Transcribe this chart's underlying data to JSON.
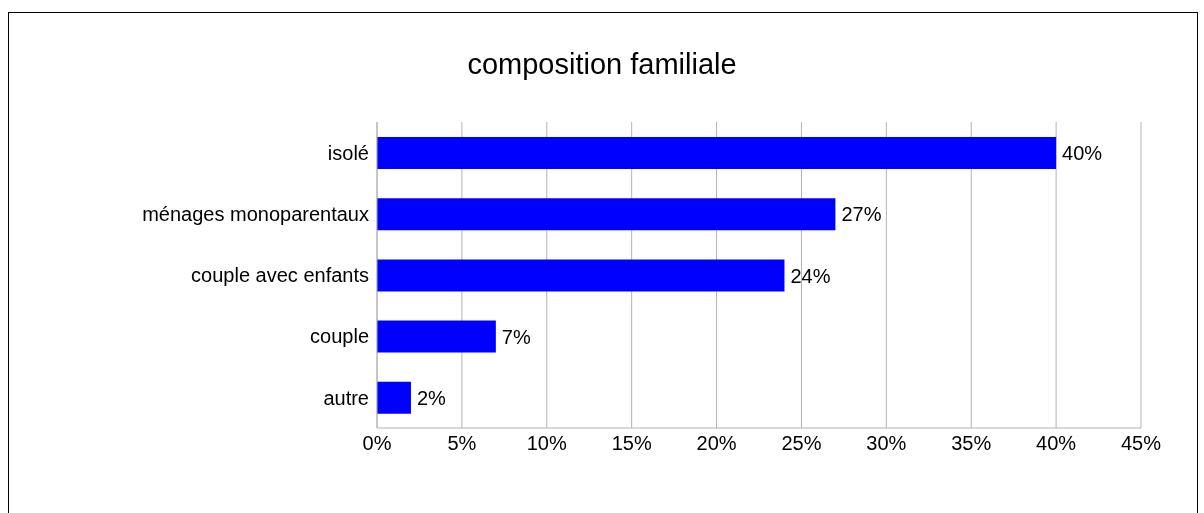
{
  "chart_data": {
    "type": "bar",
    "orientation": "horizontal",
    "title": "composition familiale",
    "categories": [
      "isolé",
      "ménages monoparentaux",
      "couple avec enfants",
      "couple",
      "autre"
    ],
    "values": [
      40,
      27,
      24,
      7,
      2
    ],
    "value_labels": [
      "40%",
      "27%",
      "24%",
      "7%",
      "2%"
    ],
    "color": "#0000ff",
    "xlim": [
      0,
      45
    ],
    "xticks": [
      {
        "value": 0,
        "label": "0%"
      },
      {
        "value": 5,
        "label": "5%"
      },
      {
        "value": 10,
        "label": "10%"
      },
      {
        "value": 15,
        "label": "15%"
      },
      {
        "value": 20,
        "label": "20%"
      },
      {
        "value": 25,
        "label": "25%"
      },
      {
        "value": 30,
        "label": "30%"
      },
      {
        "value": 35,
        "label": "35%"
      },
      {
        "value": 40,
        "label": "40%"
      },
      {
        "value": 45,
        "label": "45%"
      }
    ],
    "grid": "x"
  }
}
